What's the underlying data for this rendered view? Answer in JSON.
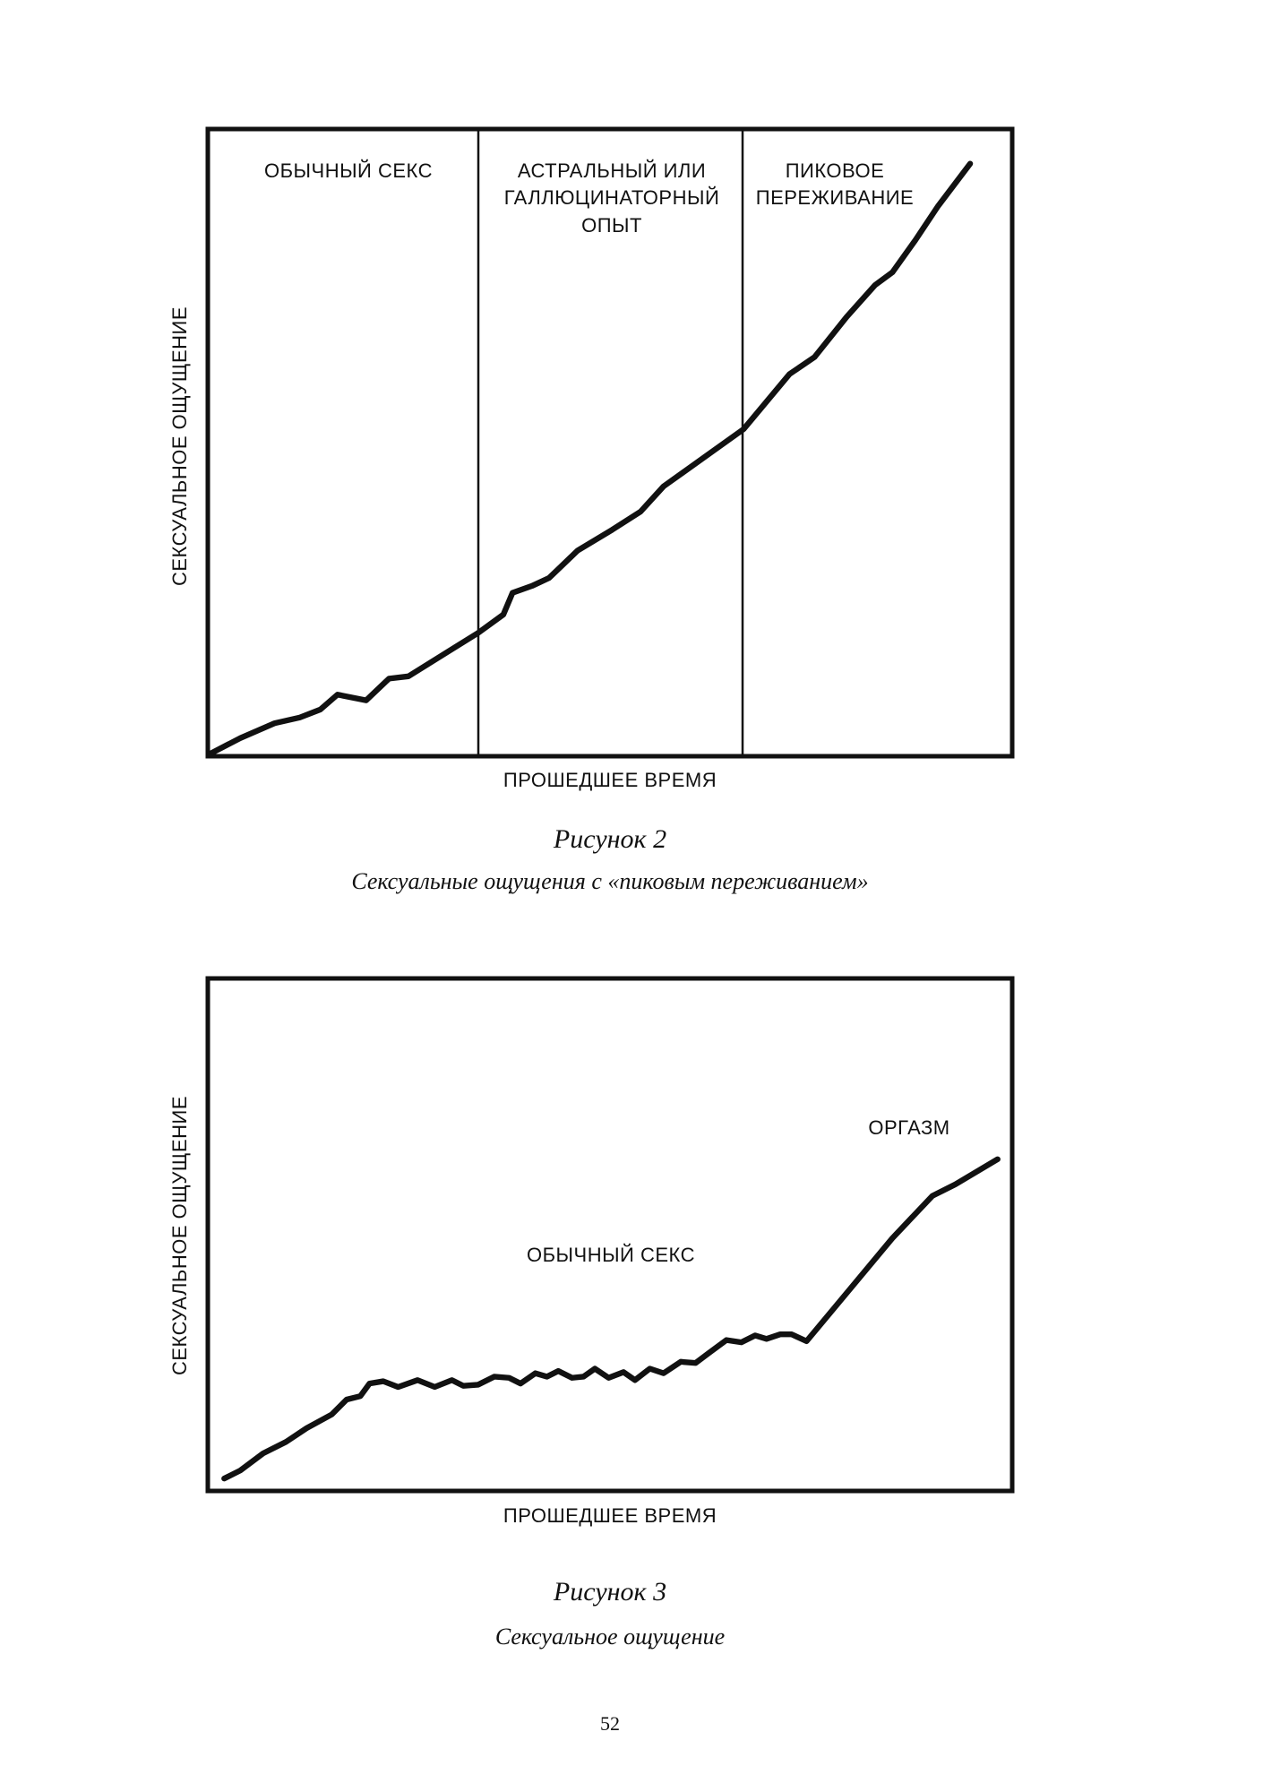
{
  "figures": [
    {
      "region_labels": [
        {
          "lines": [
            "ОБЫЧНЫЙ СЕКС"
          ]
        },
        {
          "lines": [
            "АСТРАЛЬНЫЙ ИЛИ",
            "ГАЛЛЮЦИНАТОРНЫЙ",
            "ОПЫТ"
          ]
        },
        {
          "lines": [
            "ПИКОВОЕ",
            "ПЕРЕЖИВАНИЕ"
          ]
        }
      ],
      "y_label": "СЕКСУАЛЬНОЕ ОЩУЩЕНИЕ",
      "x_label": "ПРОШЕДШЕЕ ВРЕМЯ",
      "caption_title": "Рисунок 2",
      "caption_text": "Сексуальные ощущения с «пиковым переживанием»"
    },
    {
      "region_labels": [
        {
          "lines": [
            "ОРГАЗМ"
          ]
        },
        {
          "lines": [
            "ОБЫЧНЫЙ СЕКС"
          ]
        }
      ],
      "y_label": "СЕКСУАЛЬНОЕ ОЩУЩЕНИЕ",
      "x_label": "ПРОШЕДШЕЕ ВРЕМЯ",
      "caption_title": "Рисунок 3",
      "caption_text": "Сексуальное ощущение"
    }
  ],
  "page_number": "52"
}
